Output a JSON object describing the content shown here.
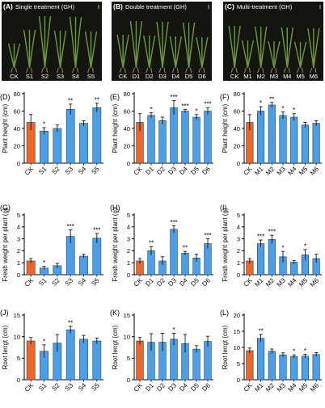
{
  "figure": {
    "colors": {
      "ck": "#f26522",
      "treatment": "#4a9fe8",
      "bar_edge": "#1e3f66",
      "axis": "#000000",
      "photo_bg": "#141410",
      "leaf": "#6f9a3a",
      "root": "#a08a5a"
    }
  },
  "photos": [
    {
      "panel": "(A)",
      "title": "Single treatment (GH)",
      "tag": "I",
      "plants": [
        "CK",
        "S1",
        "S2",
        "S3",
        "S4",
        "S5"
      ]
    },
    {
      "panel": "(B)",
      "title": "Double treatment (GH)",
      "tag": "I",
      "plants": [
        "CK",
        "D1",
        "D2",
        "D3",
        "D4",
        "D5",
        "D6"
      ]
    },
    {
      "panel": "(C)",
      "title": "Multi-treatment (GH)",
      "tag": "I",
      "plants": [
        "CK",
        "M1",
        "M2",
        "M3",
        "M4",
        "M5",
        "M6"
      ]
    }
  ],
  "chart_data": [
    {
      "panel": "(D)",
      "type": "bar",
      "ylabel": "Plant height (cm)",
      "ylim": [
        0,
        80
      ],
      "yticks": [
        0,
        20,
        40,
        60,
        80
      ],
      "categories": [
        "CK",
        "S1",
        "S2",
        "S3",
        "S4",
        "S5"
      ],
      "values": [
        47,
        37,
        40,
        62,
        46,
        64
      ],
      "errors": [
        9,
        4,
        4,
        6,
        3,
        5
      ],
      "sig": [
        "",
        "*",
        "",
        "**",
        "",
        "**"
      ]
    },
    {
      "panel": "(E)",
      "type": "bar",
      "ylabel": "Plant height (cm)",
      "ylim": [
        0,
        80
      ],
      "yticks": [
        0,
        20,
        40,
        60,
        80
      ],
      "categories": [
        "CK",
        "D1",
        "D2",
        "D3",
        "D4",
        "D5",
        "D6"
      ],
      "values": [
        47,
        55,
        49,
        64,
        60,
        53,
        60
      ],
      "errors": [
        10,
        3,
        4,
        8,
        2,
        3,
        4
      ],
      "sig": [
        "",
        "*",
        "",
        "***",
        "***",
        "*",
        "***"
      ]
    },
    {
      "panel": "(F)",
      "type": "bar",
      "ylabel": "Plant height (cm)",
      "ylim": [
        0,
        80
      ],
      "yticks": [
        0,
        20,
        40,
        60,
        80
      ],
      "categories": [
        "CK",
        "M1",
        "M2",
        "M3",
        "M4",
        "M5",
        "M6"
      ],
      "values": [
        47,
        60,
        67,
        55,
        53,
        44,
        46
      ],
      "errors": [
        9,
        5,
        3,
        4,
        4,
        3,
        3
      ],
      "sig": [
        "",
        "*",
        "**",
        "*",
        "*",
        "",
        ""
      ]
    },
    {
      "panel": "(G)",
      "type": "bar",
      "ylabel": "Fresh weight per plant (g)",
      "ylim": [
        0,
        5
      ],
      "yticks": [
        0,
        1,
        2,
        3,
        4,
        5
      ],
      "categories": [
        "CK",
        "S1",
        "S2",
        "S3",
        "S4",
        "S5"
      ],
      "values": [
        1.15,
        0.55,
        0.75,
        3.2,
        1.55,
        3.05
      ],
      "errors": [
        0.2,
        0.15,
        0.2,
        0.55,
        0.15,
        0.4
      ],
      "sig": [
        "",
        "*",
        "",
        "***",
        "",
        "***"
      ]
    },
    {
      "panel": "(H)",
      "type": "bar",
      "ylabel": "Fresh weight per plant (g)",
      "ylim": [
        0,
        5
      ],
      "yticks": [
        0,
        1,
        2,
        3,
        4,
        5
      ],
      "categories": [
        "CK",
        "D1",
        "D2",
        "D3",
        "D4",
        "D5",
        "D6"
      ],
      "values": [
        1.15,
        2.0,
        1.15,
        3.8,
        1.8,
        1.4,
        2.6
      ],
      "errors": [
        0.2,
        0.35,
        0.35,
        0.3,
        0.15,
        0.3,
        0.4
      ],
      "sig": [
        "",
        "**",
        "",
        "***",
        "**",
        "",
        "***"
      ]
    },
    {
      "panel": "(I)",
      "type": "bar",
      "ylabel": "Fresh weight per plant (g)",
      "ylim": [
        0,
        5
      ],
      "yticks": [
        0,
        1,
        2,
        3,
        4,
        5
      ],
      "categories": [
        "CK",
        "M1",
        "M2",
        "M3",
        "M4",
        "M5",
        "M6"
      ],
      "values": [
        1.15,
        2.6,
        2.95,
        1.5,
        1.05,
        1.65,
        1.35
      ],
      "errors": [
        0.2,
        0.3,
        0.35,
        0.45,
        0.15,
        0.45,
        0.35
      ],
      "sig": [
        "",
        "***",
        "***",
        "*",
        "",
        "*",
        ""
      ]
    },
    {
      "panel": "(J)",
      "type": "bar",
      "ylabel": "Root lengt (cm)",
      "ylim": [
        0,
        15
      ],
      "yticks": [
        0,
        5,
        10,
        15
      ],
      "categories": [
        "CK",
        "S1",
        "S2",
        "S3",
        "S4",
        "S5"
      ],
      "values": [
        9,
        6.6,
        8.5,
        11.6,
        9.4,
        9
      ],
      "errors": [
        0.8,
        1.5,
        2,
        0.8,
        0.9,
        0.7
      ],
      "sig": [
        "",
        "*",
        "",
        "**",
        "",
        ""
      ]
    },
    {
      "panel": "(K)",
      "type": "bar",
      "ylabel": "Root lengt (cm)",
      "ylim": [
        0,
        15
      ],
      "yticks": [
        0,
        5,
        10,
        15
      ],
      "categories": [
        "CK",
        "D1",
        "D2",
        "D3",
        "D4",
        "D5",
        "D6"
      ],
      "values": [
        9,
        8.7,
        8.7,
        9.4,
        8.4,
        7.1,
        8.9
      ],
      "errors": [
        0.8,
        2,
        2.1,
        1.4,
        2.1,
        0.8,
        1.2
      ],
      "sig": [
        "",
        "",
        "",
        "*",
        "",
        "",
        ""
      ]
    },
    {
      "panel": "(L)",
      "type": "bar",
      "ylabel": "Root lengt (cm)",
      "ylim": [
        0,
        20
      ],
      "yticks": [
        0,
        5,
        10,
        15,
        20
      ],
      "categories": [
        "CK",
        "M1",
        "M2",
        "M3",
        "M4",
        "M5",
        "M6"
      ],
      "values": [
        9,
        12.8,
        8.8,
        7.7,
        7.2,
        7.3,
        7.8
      ],
      "errors": [
        0.8,
        1.2,
        0.7,
        0.6,
        0.5,
        0.6,
        0.6
      ],
      "sig": [
        "",
        "**",
        "",
        "",
        "*",
        "*",
        ""
      ]
    }
  ]
}
